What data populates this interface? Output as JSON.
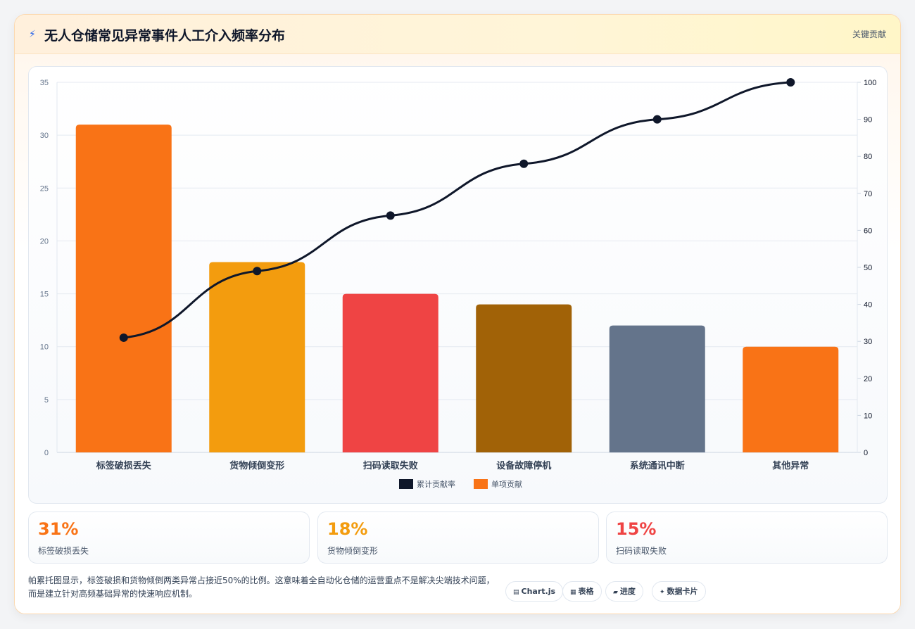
{
  "header": {
    "icon": "lightning-icon",
    "title": "无人仓储常见异常事件人工介入频率分布",
    "link": "关键贡献"
  },
  "chart_data": {
    "type": "bar",
    "categories": [
      "标签破损丢失",
      "货物倾倒变形",
      "扫码读取失败",
      "设备故障停机",
      "系统通讯中断",
      "其他异常"
    ],
    "series": [
      {
        "name": "单项贡献",
        "type": "bar",
        "axis": "left",
        "values": [
          31,
          18,
          15,
          14,
          12,
          10
        ],
        "colors": [
          "#f97316",
          "#f39c0e",
          "#ef4444",
          "#a16207",
          "#64748b",
          "#f97316"
        ]
      },
      {
        "name": "累计贡献率",
        "type": "line",
        "axis": "right",
        "values": [
          31,
          49,
          64,
          78,
          90,
          100
        ],
        "color": "#0f172a"
      }
    ],
    "y_left": {
      "min": 0,
      "max": 35,
      "ticks": [
        0,
        5,
        10,
        15,
        20,
        25,
        30,
        35
      ]
    },
    "y_right": {
      "min": 0,
      "max": 100,
      "ticks": [
        0,
        10,
        20,
        30,
        40,
        50,
        60,
        70,
        80,
        90,
        100
      ]
    },
    "legend": {
      "placement": "bottom",
      "items": [
        {
          "label": "累计贡献率",
          "color": "#0f172a"
        },
        {
          "label": "单项贡献",
          "color": "#f97316"
        }
      ]
    },
    "grid": true
  },
  "stats": [
    {
      "value": "31%",
      "label": "标签破损丢失",
      "color": "#f97316"
    },
    {
      "value": "18%",
      "label": "货物倾倒变形",
      "color": "#f39c0e"
    },
    {
      "value": "15%",
      "label": "扫码读取失败",
      "color": "#ef4444"
    }
  ],
  "note": "帕累托图显示，标签破损和货物倾倒两类异常占接近50%的比例。这意味着全自动化仓储的运营重点不是解决尖端技术问题，而是建立针对高频基础异常的快速响应机制。",
  "pills": [
    {
      "label": "Chart.js",
      "icon": "chart-icon",
      "glyph": "▤"
    },
    {
      "label": "表格",
      "icon": "table-icon",
      "glyph": "▦"
    },
    {
      "label": "进度",
      "icon": "progress-icon",
      "glyph": "▰"
    },
    {
      "label": "数据卡片",
      "icon": "sparkle-icon",
      "glyph": "✦"
    }
  ]
}
